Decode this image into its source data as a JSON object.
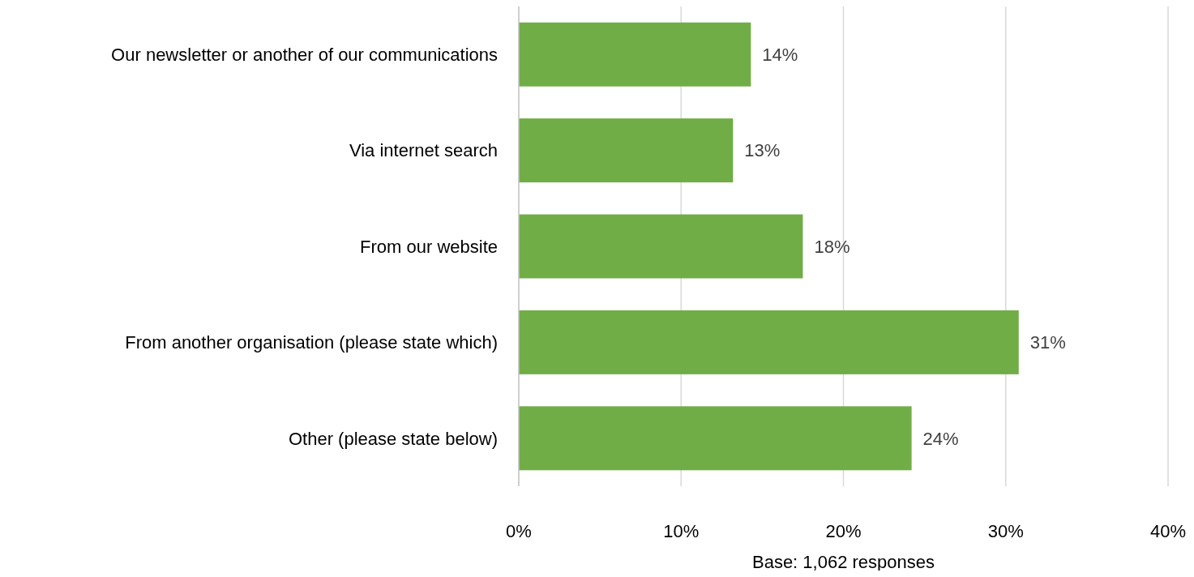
{
  "chart_data": {
    "type": "bar",
    "orientation": "horizontal",
    "categories": [
      "Our newsletter or another of our communications",
      "Via internet search",
      "From our website",
      "From another organisation (please state which)",
      "Other (please state below)"
    ],
    "values": [
      14.3,
      13.2,
      17.5,
      30.8,
      24.2
    ],
    "value_labels": [
      "14%",
      "13%",
      "18%",
      "31%",
      "24%"
    ],
    "color": "#70ad47",
    "xlim": [
      0,
      40
    ],
    "xticks": [
      {
        "value": 0,
        "label": "0%"
      },
      {
        "value": 10,
        "label": "10%"
      },
      {
        "value": 20,
        "label": "20%"
      },
      {
        "value": 30,
        "label": "30%"
      },
      {
        "value": 40,
        "label": "40%"
      }
    ],
    "grid": "x",
    "annotations": [
      "Base: 1,062 responses"
    ]
  }
}
